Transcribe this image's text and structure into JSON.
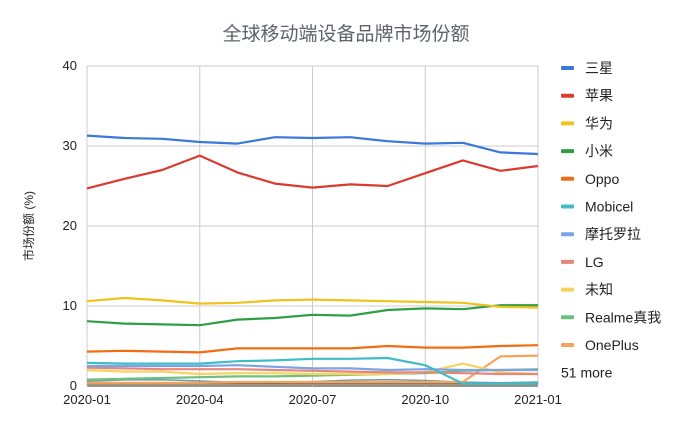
{
  "chart_data": {
    "type": "line",
    "title": "全球移动端设备品牌市场份额",
    "xlabel": "",
    "ylabel": "市场份额 (%)",
    "ylim": [
      0,
      40
    ],
    "yticks": [
      "0",
      "10",
      "20",
      "30",
      "40"
    ],
    "x": [
      "2020-01",
      "2020-02",
      "2020-03",
      "2020-04",
      "2020-05",
      "2020-06",
      "2020-07",
      "2020-08",
      "2020-09",
      "2020-10",
      "2020-11",
      "2020-12",
      "2021-01"
    ],
    "xtick_labels": [
      "2020-01",
      "2020-04",
      "2020-07",
      "2020-10",
      "2021-01"
    ],
    "grid": true,
    "legend_position": "right",
    "series": [
      {
        "name": "三星",
        "color": "#3c78d8",
        "values": [
          31.3,
          31.0,
          30.9,
          30.5,
          30.3,
          31.1,
          31.0,
          31.1,
          30.6,
          30.3,
          30.4,
          29.2,
          29.0
        ]
      },
      {
        "name": "苹果",
        "color": "#db3a2f",
        "values": [
          24.7,
          25.9,
          27.0,
          28.8,
          26.7,
          25.3,
          24.8,
          25.2,
          25.0,
          26.6,
          28.2,
          26.9,
          27.5
        ]
      },
      {
        "name": "华为",
        "color": "#f1c21b",
        "values": [
          10.6,
          11.0,
          10.7,
          10.3,
          10.4,
          10.7,
          10.8,
          10.7,
          10.6,
          10.5,
          10.4,
          9.9,
          9.8
        ]
      },
      {
        "name": "小米",
        "color": "#2e9e46",
        "values": [
          8.1,
          7.8,
          7.7,
          7.6,
          8.3,
          8.5,
          8.9,
          8.8,
          9.5,
          9.7,
          9.6,
          10.1,
          10.1
        ]
      },
      {
        "name": "Oppo",
        "color": "#f36b12",
        "values": [
          4.3,
          4.4,
          4.3,
          4.2,
          4.7,
          4.7,
          4.7,
          4.7,
          5.0,
          4.8,
          4.8,
          5.0,
          5.1
        ]
      },
      {
        "name": "Mobicel",
        "color": "#3fbcc4",
        "values": [
          2.9,
          2.8,
          2.8,
          2.8,
          3.1,
          3.2,
          3.4,
          3.4,
          3.5,
          2.6,
          0.3,
          0.3,
          0.3
        ]
      },
      {
        "name": "摩托罗拉",
        "color": "#7ba3e8",
        "values": [
          2.5,
          2.5,
          2.5,
          2.5,
          2.6,
          2.4,
          2.2,
          2.2,
          2.0,
          2.1,
          2.0,
          2.0,
          2.0
        ]
      },
      {
        "name": "LG",
        "color": "#e5857b",
        "values": [
          2.3,
          2.2,
          2.1,
          2.1,
          2.1,
          2.0,
          1.9,
          1.8,
          1.7,
          1.7,
          1.6,
          1.5,
          1.5
        ]
      },
      {
        "name": "未知",
        "color": "#f9d25e",
        "values": [
          2.0,
          1.8,
          1.8,
          1.5,
          1.6,
          1.6,
          1.5,
          1.5,
          1.5,
          1.7,
          2.8,
          1.7,
          1.5
        ]
      },
      {
        "name": "Realme真我",
        "color": "#6cc080",
        "values": [
          0.8,
          0.9,
          1.0,
          1.1,
          1.2,
          1.2,
          1.3,
          1.4,
          1.5,
          1.6,
          1.9,
          2.0,
          2.1
        ]
      },
      {
        "name": "OnePlus",
        "color": "#f7a35c",
        "values": [
          0.4,
          0.4,
          0.4,
          0.4,
          0.5,
          0.5,
          0.5,
          0.5,
          0.5,
          0.5,
          0.5,
          3.7,
          3.8
        ]
      }
    ],
    "legend_more": "51 more"
  }
}
